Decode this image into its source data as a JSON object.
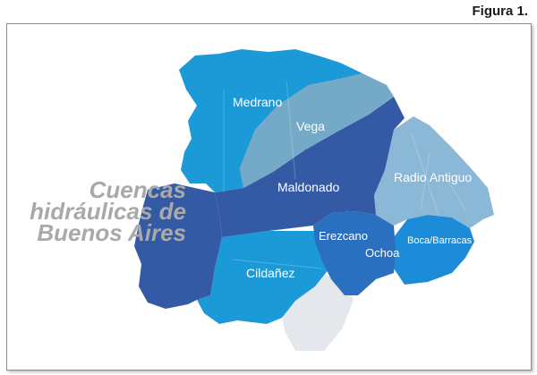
{
  "figure_label": "Figura 1.",
  "map_title": {
    "line1": "Cuencas",
    "line2": "hidráulicas de",
    "line3": "Buenos Aires"
  },
  "colors": {
    "medrano": "#1c9ad8",
    "vega": "#74aac8",
    "maldonado": "#345aa6",
    "radio_antiguo": "#8bb8d6",
    "erezcano": "#2b6fc0",
    "ochoa": "#2b6fc0",
    "boca_barracas": "#1c8cd8",
    "cildanez": "#1c9ad8",
    "south_light": "#e4e8ec",
    "title_grey": "#a9a9a9"
  },
  "regions": [
    {
      "id": "medrano",
      "label": "Medrano"
    },
    {
      "id": "vega",
      "label": "Vega"
    },
    {
      "id": "maldonado",
      "label": "Maldonado"
    },
    {
      "id": "radio_antiguo",
      "label": "Radio Antiguo"
    },
    {
      "id": "erezcano",
      "label": "Erezcano"
    },
    {
      "id": "ochoa",
      "label": "Ochoa"
    },
    {
      "id": "boca_barracas",
      "label": "Boca/Barracas"
    },
    {
      "id": "cildanez",
      "label": "Cildañez"
    }
  ]
}
